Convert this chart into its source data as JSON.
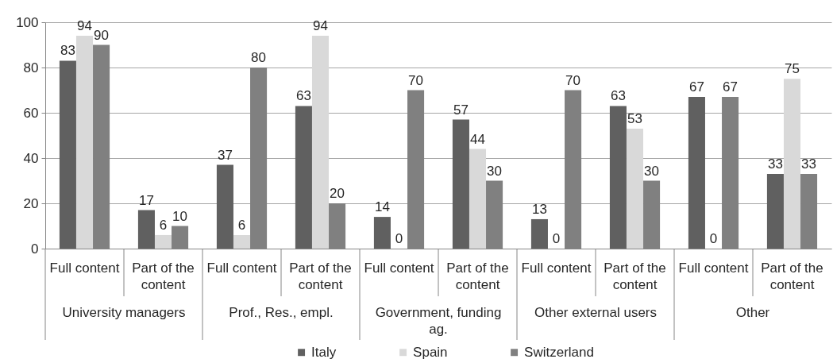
{
  "chart_data": {
    "type": "bar",
    "categories": [
      "Full content",
      "Part of the content",
      "Full content",
      "Part of the content",
      "Full content",
      "Part of the content",
      "Full content",
      "Part of the content",
      "Full content",
      "Part of the content"
    ],
    "series": [
      {
        "name": "Italy",
        "color": "#606060",
        "values": [
          83,
          17,
          37,
          63,
          14,
          57,
          13,
          63,
          67,
          33
        ]
      },
      {
        "name": "Spain",
        "color": "#d9d9d9",
        "values": [
          94,
          6,
          6,
          94,
          0,
          44,
          0,
          53,
          0,
          75
        ]
      },
      {
        "name": "Switzerland",
        "color": "#808080",
        "values": [
          90,
          10,
          80,
          20,
          70,
          30,
          70,
          30,
          67,
          33
        ]
      }
    ],
    "annotations": [
      "University managers",
      "Prof., Res., empl.",
      "Government, funding ag.",
      "Other external users",
      "Other"
    ],
    "ylim": [
      0,
      100
    ],
    "yticks": [
      0,
      20,
      40,
      60,
      80,
      100
    ],
    "grid": "y",
    "legend": "bottom",
    "data_labels": true
  }
}
